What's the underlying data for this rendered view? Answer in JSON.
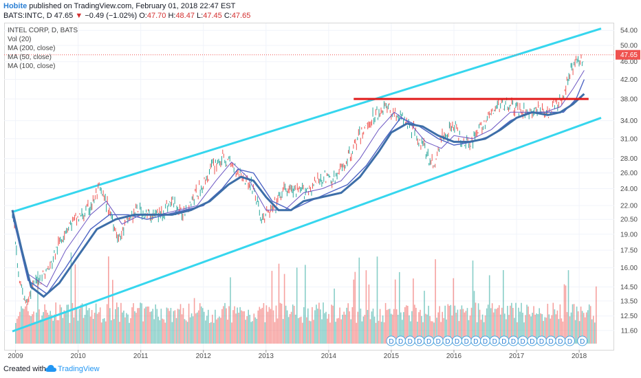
{
  "header": {
    "author": "Hobite",
    "published": "published on TradingView.com, February 01, 2018 22:47 EST",
    "symbol": "BATS:INTC, D",
    "change": "−0.49 (−1.02%)",
    "last": "47.65",
    "o_label": "O:",
    "o_val": "47.70",
    "h_label": "H:",
    "h_val": "48.47",
    "l_label": "L:",
    "l_val": "47.45",
    "c_label": "C:",
    "c_val": "47.65"
  },
  "legend": {
    "title": "INTEL CORP, D, BATS",
    "vol": "Vol (20)",
    "ma200": "MA (200, close)",
    "ma50": "MA (50, close)",
    "ma100": "MA (100, close)"
  },
  "footer": {
    "created_with": "Created with",
    "brand": "TradingView"
  },
  "colors": {
    "channel": "#36d6ee",
    "resistance": "#e01818",
    "ma200": "#3d6ea8",
    "ma100": "#4d64c4",
    "ma50": "#6b55c2",
    "up": "#26a69a",
    "down": "#ef5350",
    "price_label_bg": "#ef5350"
  },
  "chart_data": {
    "type": "line",
    "title": "INTEL CORP, D, BATS",
    "y_scale": "log",
    "ylim": [
      11.0,
      55.0
    ],
    "xlim": [
      2008.95,
      2018.35
    ],
    "y_ticks": [
      54.0,
      50.0,
      46.0,
      42.0,
      38.0,
      34.0,
      31.0,
      28.0,
      26.0,
      24.0,
      22.0,
      20.5,
      19.0,
      17.5,
      16.0,
      14.5,
      13.5,
      12.5,
      11.6
    ],
    "y_tick_labels": [
      "54.00",
      "50.00",
      "46.00",
      "42.00",
      "38.00",
      "34.00",
      "31.00",
      "28.00",
      "26.00",
      "24.00",
      "22.00",
      "20.50",
      "19.00",
      "17.50",
      "16.00",
      "14.50",
      "13.50",
      "12.50",
      "11.60"
    ],
    "x_ticks": [
      2009,
      2010,
      2011,
      2012,
      2013,
      2014,
      2015,
      2016,
      2017,
      2018
    ],
    "x_tick_labels": [
      "2009",
      "2010",
      "2011",
      "2012",
      "2013",
      "2014",
      "2015",
      "2016",
      "2017",
      "2018"
    ],
    "last_price": 47.65,
    "last_price_label": "47.65",
    "price": {
      "x": [
        2008.95,
        2009.05,
        2009.15,
        2009.25,
        2009.35,
        2009.45,
        2009.55,
        2009.65,
        2009.8,
        2009.95,
        2010.1,
        2010.25,
        2010.33,
        2010.5,
        2010.65,
        2010.8,
        2010.95,
        2011.1,
        2011.3,
        2011.5,
        2011.65,
        2011.8,
        2012.0,
        2012.15,
        2012.3,
        2012.4,
        2012.6,
        2012.8,
        2012.92,
        2013.1,
        2013.3,
        2013.5,
        2013.7,
        2013.9,
        2014.1,
        2014.3,
        2014.5,
        2014.7,
        2014.9,
        2015.1,
        2015.3,
        2015.45,
        2015.6,
        2015.68,
        2015.8,
        2016.0,
        2016.1,
        2016.3,
        2016.5,
        2016.7,
        2016.85,
        2017.0,
        2017.2,
        2017.4,
        2017.5,
        2017.6,
        2017.75,
        2017.85,
        2017.95,
        2018.02,
        2018.08
      ],
      "y": [
        21.5,
        15.0,
        13.5,
        14.2,
        15.0,
        15.5,
        16.0,
        17.5,
        19.5,
        20.5,
        21.0,
        22.5,
        24.0,
        21.5,
        18.5,
        20.5,
        21.5,
        21.0,
        21.0,
        22.5,
        21.0,
        22.5,
        24.5,
        27.0,
        28.0,
        27.5,
        26.0,
        24.0,
        20.5,
        21.5,
        24.0,
        23.5,
        24.0,
        25.5,
        25.0,
        28.0,
        31.5,
        34.5,
        36.5,
        35.0,
        33.0,
        31.0,
        28.0,
        27.0,
        31.0,
        33.5,
        31.0,
        30.5,
        34.0,
        36.5,
        37.5,
        36.0,
        35.5,
        36.0,
        35.0,
        36.5,
        38.0,
        44.0,
        46.5,
        45.5,
        47.65
      ]
    },
    "ma50": {
      "x": [
        2008.95,
        2009.2,
        2009.5,
        2009.8,
        2010.2,
        2010.45,
        2010.7,
        2011.0,
        2011.3,
        2011.6,
        2011.9,
        2012.2,
        2012.45,
        2012.7,
        2013.0,
        2013.3,
        2013.6,
        2013.9,
        2014.2,
        2014.5,
        2014.8,
        2015.05,
        2015.3,
        2015.55,
        2015.8,
        2016.0,
        2016.3,
        2016.6,
        2016.9,
        2017.2,
        2017.45,
        2017.7,
        2017.9,
        2018.08
      ],
      "y": [
        21.5,
        15.5,
        14.5,
        17.5,
        21.0,
        22.5,
        20.0,
        21.0,
        21.0,
        21.5,
        22.0,
        25.0,
        27.5,
        25.5,
        21.5,
        21.5,
        23.5,
        24.0,
        25.0,
        28.0,
        32.5,
        35.5,
        33.5,
        30.5,
        29.5,
        31.5,
        31.0,
        32.5,
        35.5,
        35.5,
        35.5,
        36.5,
        40.0,
        44.0
      ]
    },
    "ma100": {
      "x": [
        2008.95,
        2009.2,
        2009.5,
        2009.8,
        2010.2,
        2010.5,
        2010.8,
        2011.1,
        2011.4,
        2011.7,
        2012.0,
        2012.3,
        2012.55,
        2012.8,
        2013.1,
        2013.4,
        2013.7,
        2014.0,
        2014.3,
        2014.6,
        2014.9,
        2015.15,
        2015.45,
        2015.75,
        2016.0,
        2016.3,
        2016.6,
        2016.9,
        2017.2,
        2017.5,
        2017.75,
        2017.95,
        2018.08
      ],
      "y": [
        21.0,
        15.0,
        14.0,
        16.0,
        19.5,
        21.0,
        21.0,
        20.5,
        21.0,
        21.5,
        22.0,
        24.0,
        26.5,
        26.0,
        22.5,
        21.5,
        22.5,
        23.5,
        24.5,
        27.0,
        31.0,
        34.5,
        33.0,
        31.0,
        30.0,
        30.5,
        31.5,
        34.0,
        35.5,
        35.5,
        35.5,
        38.0,
        42.0
      ]
    },
    "ma200": {
      "x": [
        2008.95,
        2009.1,
        2009.25,
        2009.45,
        2009.7,
        2010.0,
        2010.3,
        2010.6,
        2010.9,
        2011.2,
        2011.5,
        2011.8,
        2012.1,
        2012.4,
        2012.6,
        2012.8,
        2013.0,
        2013.2,
        2013.4,
        2013.6,
        2013.9,
        2014.2,
        2014.5,
        2014.8,
        2015.0,
        2015.25,
        2015.5,
        2015.75,
        2016.0,
        2016.25,
        2016.5,
        2016.75,
        2017.0,
        2017.25,
        2017.5,
        2017.7,
        2017.9,
        2018.08
      ],
      "y": [
        21.5,
        17.5,
        14.5,
        13.8,
        14.8,
        17.0,
        19.5,
        20.5,
        21.0,
        21.0,
        21.0,
        21.5,
        22.5,
        24.5,
        25.5,
        25.0,
        23.0,
        21.5,
        21.5,
        22.5,
        23.0,
        23.5,
        25.5,
        29.0,
        32.0,
        33.5,
        33.0,
        31.5,
        30.5,
        30.5,
        31.0,
        32.5,
        34.5,
        35.5,
        35.0,
        35.5,
        37.0,
        39.0
      ]
    },
    "upper_channel": {
      "x": [
        2008.95,
        2018.35
      ],
      "y": [
        21.3,
        54.5
      ]
    },
    "lower_channel": {
      "x": [
        2008.95,
        2018.35
      ],
      "y": [
        11.55,
        34.5
      ]
    },
    "resistance": {
      "x": [
        2014.4,
        2018.15
      ],
      "y": [
        38.0,
        38.0
      ]
    },
    "dividend_markers": {
      "label": "D",
      "x": [
        2015.0,
        2015.15,
        2015.3,
        2015.45,
        2015.6,
        2015.75,
        2015.9,
        2016.05,
        2016.2,
        2016.35,
        2016.5,
        2016.65,
        2016.8,
        2016.95,
        2017.1,
        2017.25,
        2017.4,
        2017.55,
        2017.7,
        2017.85,
        2018.05
      ]
    }
  }
}
